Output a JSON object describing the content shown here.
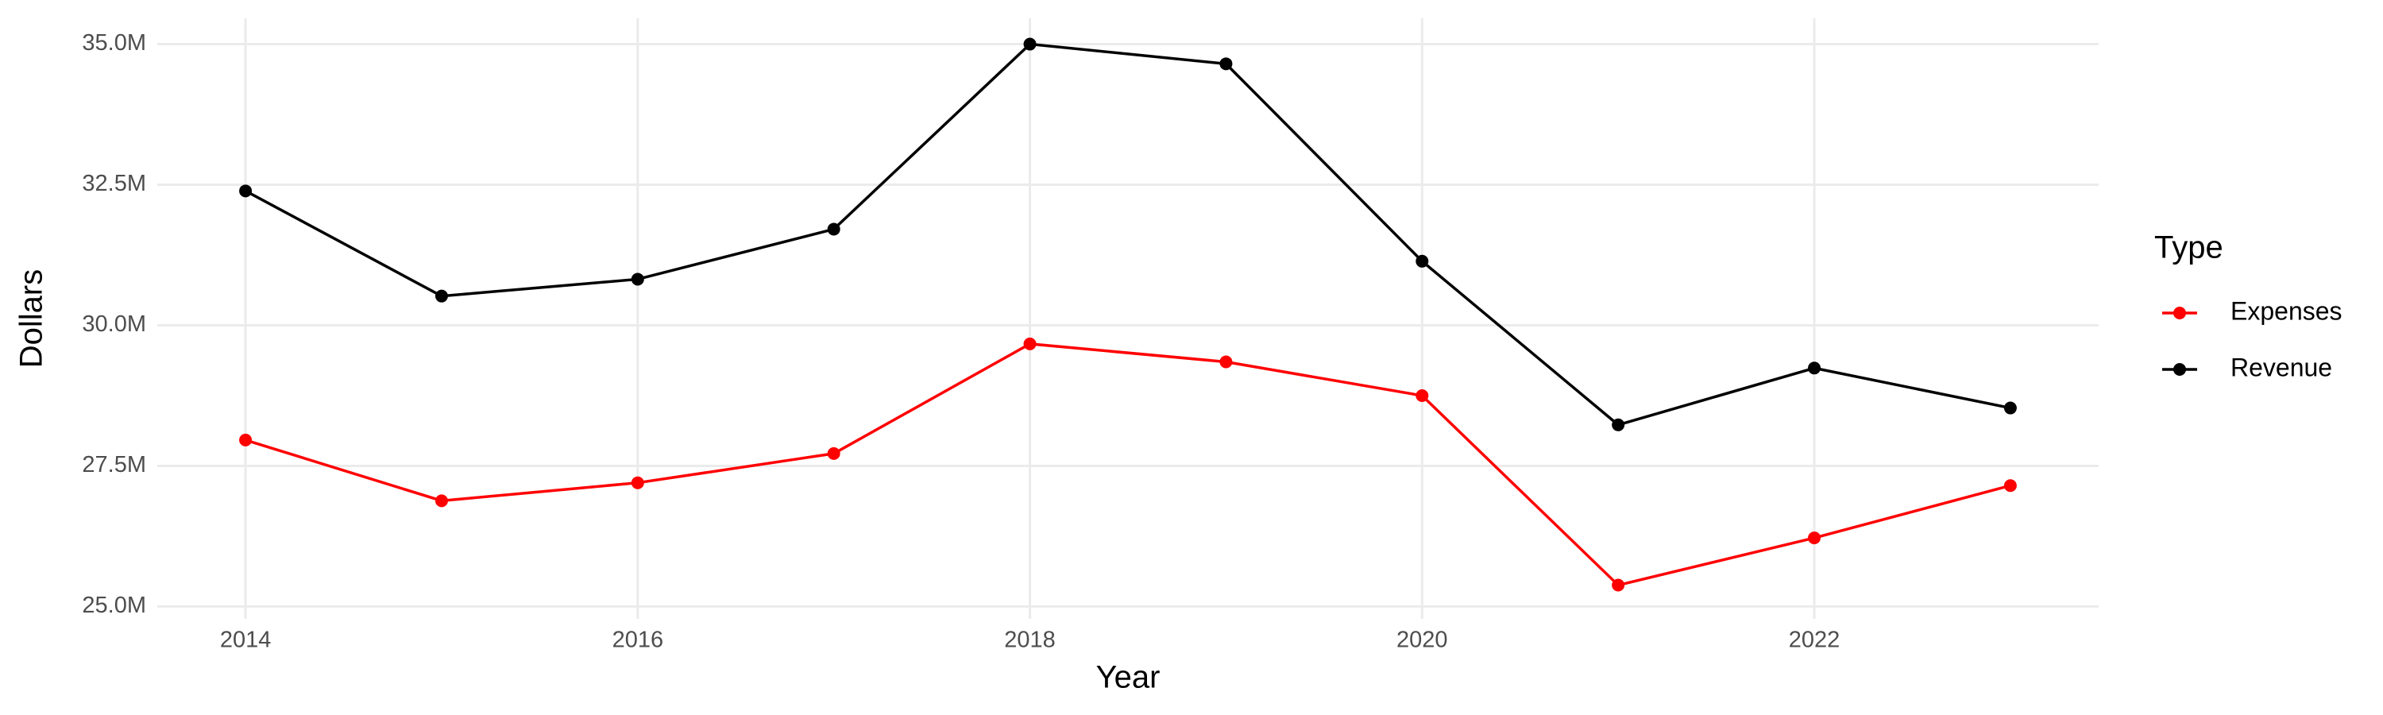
{
  "chart_data": {
    "type": "line",
    "x_label": "Year",
    "y_label": "Dollars",
    "legend_title": "Type",
    "legend": "right",
    "grid": true,
    "x": [
      2014,
      2015,
      2016,
      2017,
      2018,
      2019,
      2020,
      2021,
      2022,
      2023
    ],
    "series": [
      {
        "name": "Expenses",
        "color": "#ff0000",
        "values": [
          27960000,
          26880000,
          27200000,
          27720000,
          29670000,
          29350000,
          28750000,
          25380000,
          26220000,
          27150000
        ]
      },
      {
        "name": "Revenue",
        "color": "#000000",
        "values": [
          32390000,
          30520000,
          30820000,
          31710000,
          35000000,
          34650000,
          31140000,
          28230000,
          29240000,
          28530000
        ]
      }
    ],
    "xlim": [
      2013.55,
      2023.45
    ],
    "xticks": [
      2014,
      2016,
      2018,
      2020,
      2022
    ],
    "ylim": [
      24780000,
      35460000
    ],
    "yticks": [
      {
        "value": 25000000,
        "label": "25.0M"
      },
      {
        "value": 27500000,
        "label": "27.5M"
      },
      {
        "value": 30000000,
        "label": "30.0M"
      },
      {
        "value": 32500000,
        "label": "32.5M"
      },
      {
        "value": 35000000,
        "label": "35.0M"
      }
    ]
  }
}
